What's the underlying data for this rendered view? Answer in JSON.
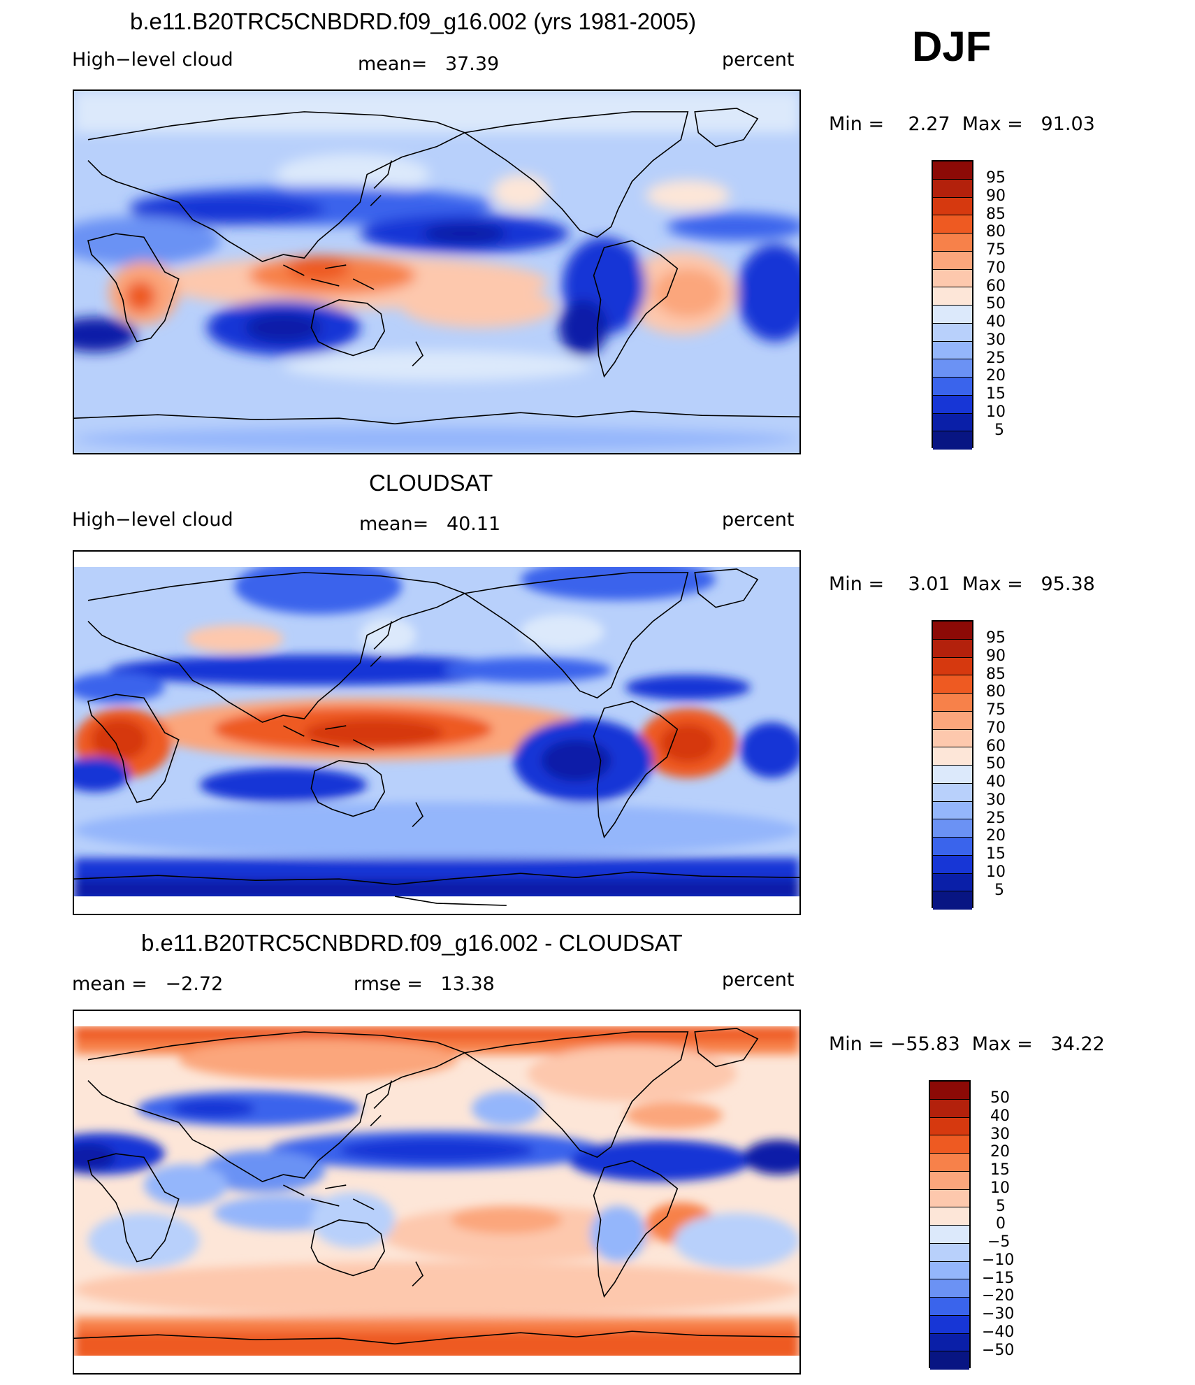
{
  "season": "DJF",
  "panels": [
    {
      "title": "b.e11.B20TRC5CNBDRD.f09_g16.002 (yrs 1981-2005)",
      "left_label": "High−level cloud",
      "center_label": "mean=   37.39",
      "right_label": "percent",
      "minmax": "Min =    2.27  Max =   91.03"
    },
    {
      "title": "CLOUDSAT",
      "left_label": "High−level cloud",
      "center_label": "mean=   40.11",
      "right_label": "percent",
      "minmax": "Min =    3.01  Max =   95.38"
    },
    {
      "title": "b.e11.B20TRC5CNBDRD.f09_g16.002 - CLOUDSAT",
      "left_label": "mean =   −2.72",
      "center_label": "rmse =   13.38",
      "right_label": "percent",
      "minmax": "Min = −55.83  Max =   34.22"
    }
  ],
  "colorbars": {
    "abs_levels": [
      "95",
      "90",
      "85",
      "80",
      "75",
      "70",
      "60",
      "50",
      "40",
      "30",
      "25",
      "20",
      "15",
      "10",
      "5"
    ],
    "diff_levels": [
      "50",
      "40",
      "30",
      "20",
      "15",
      "10",
      "5",
      "0",
      "−5",
      "−10",
      "−15",
      "−20",
      "−30",
      "−40",
      "−50"
    ],
    "colors": [
      "#8c0a06",
      "#b3210c",
      "#d6390f",
      "#ee5a22",
      "#f7814a",
      "#fba67c",
      "#fdc8ad",
      "#fde6d8",
      "#dce9fb",
      "#b8d0fb",
      "#94b6fb",
      "#6b92f4",
      "#3a64ec",
      "#1736d6",
      "#0a1fa8",
      "#081583"
    ]
  }
}
